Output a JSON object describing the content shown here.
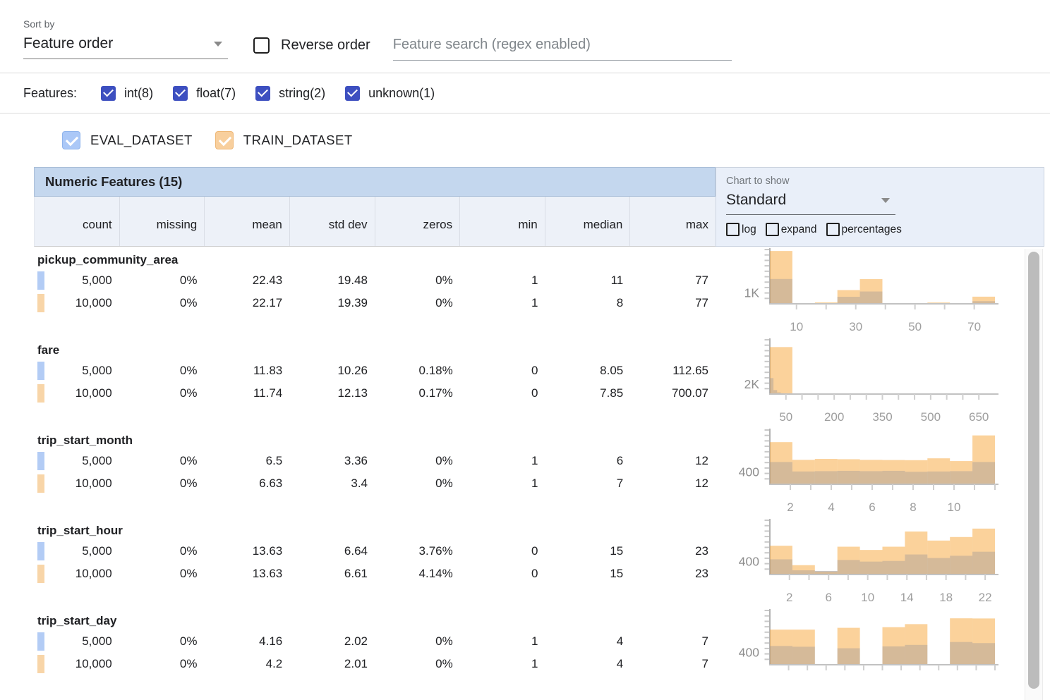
{
  "toolbar": {
    "sort_by_label": "Sort by",
    "sort_by_value": "Feature order",
    "reverse_order_label": "Reverse order",
    "search_placeholder": "Feature search (regex enabled)"
  },
  "features_filter": {
    "label": "Features:",
    "types": [
      {
        "label": "int(8)",
        "checked": true
      },
      {
        "label": "float(7)",
        "checked": true
      },
      {
        "label": "string(2)",
        "checked": true
      },
      {
        "label": "unknown(1)",
        "checked": true
      }
    ]
  },
  "datasets": [
    {
      "name": "EVAL_DATASET",
      "key": "eval",
      "chip_color": "#b3ccf5",
      "checkbox_bg": "#abc8f7",
      "checkbox_border": "#8fb4ec",
      "bar_color": "rgba(66,133,244,0.4)"
    },
    {
      "name": "TRAIN_DATASET",
      "key": "train",
      "chip_color": "#f8d5a8",
      "checkbox_bg": "#f8cf9d",
      "checkbox_border": "#eeb877",
      "bar_color": "rgba(247,166,56,0.5)"
    }
  ],
  "table": {
    "title": "Numeric Features (15)",
    "columns": [
      "count",
      "missing",
      "mean",
      "std dev",
      "zeros",
      "min",
      "median",
      "max"
    ]
  },
  "chart_controls": {
    "label": "Chart to show",
    "value": "Standard",
    "options": [
      {
        "label": "log",
        "checked": false
      },
      {
        "label": "expand",
        "checked": false
      },
      {
        "label": "percentages",
        "checked": false
      }
    ]
  },
  "features": [
    {
      "name": "pickup_community_area",
      "rows": [
        {
          "dataset": "eval",
          "values": [
            "5,000",
            "0%",
            "22.43",
            "19.48",
            "0%",
            "1",
            "11",
            "77"
          ]
        },
        {
          "dataset": "train",
          "values": [
            "10,000",
            "0%",
            "22.17",
            "19.39",
            "0%",
            "1",
            "8",
            "77"
          ]
        }
      ]
    },
    {
      "name": "fare",
      "rows": [
        {
          "dataset": "eval",
          "values": [
            "5,000",
            "0%",
            "11.83",
            "10.26",
            "0.18%",
            "0",
            "8.05",
            "112.65"
          ]
        },
        {
          "dataset": "train",
          "values": [
            "10,000",
            "0%",
            "11.74",
            "12.13",
            "0.17%",
            "0",
            "7.85",
            "700.07"
          ]
        }
      ]
    },
    {
      "name": "trip_start_month",
      "rows": [
        {
          "dataset": "eval",
          "values": [
            "5,000",
            "0%",
            "6.5",
            "3.36",
            "0%",
            "1",
            "6",
            "12"
          ]
        },
        {
          "dataset": "train",
          "values": [
            "10,000",
            "0%",
            "6.63",
            "3.4",
            "0%",
            "1",
            "7",
            "12"
          ]
        }
      ]
    },
    {
      "name": "trip_start_hour",
      "rows": [
        {
          "dataset": "eval",
          "values": [
            "5,000",
            "0%",
            "13.63",
            "6.64",
            "3.76%",
            "0",
            "15",
            "23"
          ]
        },
        {
          "dataset": "train",
          "values": [
            "10,000",
            "0%",
            "13.63",
            "6.61",
            "4.14%",
            "0",
            "15",
            "23"
          ]
        }
      ]
    },
    {
      "name": "trip_start_day",
      "rows": [
        {
          "dataset": "eval",
          "values": [
            "5,000",
            "0%",
            "4.16",
            "2.02",
            "0%",
            "1",
            "4",
            "7"
          ]
        },
        {
          "dataset": "train",
          "values": [
            "10,000",
            "0%",
            "4.2",
            "2.01",
            "0%",
            "1",
            "4",
            "7"
          ]
        }
      ]
    }
  ],
  "chart_data": [
    {
      "type": "bar",
      "feature": "pickup_community_area",
      "ylabel": "1K",
      "ylabel_value": 1000,
      "ymax": 5000,
      "x_domain": [
        1,
        77
      ],
      "xticks": [
        {
          "f": 0.1184,
          "l": "10"
        },
        {
          "f": 0.25,
          "l": ""
        },
        {
          "f": 0.3816,
          "l": "30"
        },
        {
          "f": 0.5132,
          "l": ""
        },
        {
          "f": 0.6447,
          "l": "50"
        },
        {
          "f": 0.7763,
          "l": ""
        },
        {
          "f": 0.9079,
          "l": "70"
        }
      ],
      "series": [
        {
          "name": "EVAL_DATASET",
          "color": "rgba(66,133,244,0.4)",
          "domain": [
            1,
            77
          ],
          "values": [
            2260,
            25,
            45,
            640,
            1120,
            8,
            8,
            40,
            5,
            240
          ]
        },
        {
          "name": "TRAIN_DATASET",
          "color": "rgba(247,166,56,0.5)",
          "domain": [
            1,
            77
          ],
          "values": [
            4800,
            60,
            130,
            1250,
            2250,
            15,
            15,
            120,
            10,
            650
          ]
        }
      ]
    },
    {
      "type": "bar",
      "feature": "fare",
      "ylabel": "2K",
      "ylabel_value": 2000,
      "ymax": 11000,
      "x_domain": [
        0,
        700.07
      ],
      "xticks": [
        {
          "f": 0.0714,
          "l": "50"
        },
        {
          "f": 0.1428,
          "l": ""
        },
        {
          "f": 0.2143,
          "l": ""
        },
        {
          "f": 0.2857,
          "l": "200"
        },
        {
          "f": 0.3571,
          "l": ""
        },
        {
          "f": 0.4286,
          "l": ""
        },
        {
          "f": 0.5,
          "l": "350"
        },
        {
          "f": 0.5714,
          "l": ""
        },
        {
          "f": 0.6428,
          "l": ""
        },
        {
          "f": 0.7143,
          "l": "500"
        },
        {
          "f": 0.7857,
          "l": ""
        },
        {
          "f": 0.8571,
          "l": ""
        },
        {
          "f": 0.9285,
          "l": "650"
        }
      ],
      "series": [
        {
          "name": "EVAL_DATASET",
          "color": "rgba(66,133,244,0.4)",
          "domain": [
            0,
            112.65
          ],
          "values": [
            3200,
            800,
            330,
            150,
            80,
            40,
            20,
            10,
            5,
            3
          ]
        },
        {
          "name": "TRAIN_DATASET",
          "color": "rgba(247,166,56,0.5)",
          "domain": [
            0,
            700.07
          ],
          "values": [
            9400,
            40,
            15,
            8,
            5,
            3,
            2,
            1,
            1,
            1
          ]
        }
      ]
    },
    {
      "type": "bar",
      "feature": "trip_start_month",
      "ylabel": "400",
      "ylabel_value": 400,
      "ymax": 1800,
      "x_domain": [
        1,
        12
      ],
      "xticks": [
        {
          "f": 0.0909,
          "l": "2"
        },
        {
          "f": 0.1818,
          "l": ""
        },
        {
          "f": 0.2727,
          "l": "4"
        },
        {
          "f": 0.3636,
          "l": ""
        },
        {
          "f": 0.4545,
          "l": "6"
        },
        {
          "f": 0.5455,
          "l": ""
        },
        {
          "f": 0.6364,
          "l": "8"
        },
        {
          "f": 0.7273,
          "l": ""
        },
        {
          "f": 0.8182,
          "l": "10"
        },
        {
          "f": 0.9091,
          "l": ""
        },
        {
          "f": 1.0,
          "l": ""
        }
      ],
      "series": [
        {
          "name": "EVAL_DATASET",
          "color": "rgba(66,133,244,0.4)",
          "domain": [
            1,
            12
          ],
          "values": [
            730,
            420,
            430,
            440,
            430,
            440,
            410,
            420,
            430,
            730
          ]
        },
        {
          "name": "TRAIN_DATASET",
          "color": "rgba(247,166,56,0.5)",
          "domain": [
            1,
            12
          ],
          "values": [
            1380,
            800,
            830,
            820,
            800,
            795,
            790,
            850,
            760,
            1600
          ]
        }
      ]
    },
    {
      "type": "bar",
      "feature": "trip_start_hour",
      "ylabel": "400",
      "ylabel_value": 400,
      "ymax": 1700,
      "x_domain": [
        0,
        23
      ],
      "xticks": [
        {
          "f": 0.087,
          "l": "2"
        },
        {
          "f": 0.1739,
          "l": ""
        },
        {
          "f": 0.2609,
          "l": "6"
        },
        {
          "f": 0.3478,
          "l": ""
        },
        {
          "f": 0.4348,
          "l": "10"
        },
        {
          "f": 0.5217,
          "l": ""
        },
        {
          "f": 0.6087,
          "l": "14"
        },
        {
          "f": 0.6957,
          "l": ""
        },
        {
          "f": 0.7826,
          "l": "18"
        },
        {
          "f": 0.8696,
          "l": ""
        },
        {
          "f": 0.9565,
          "l": "22"
        }
      ],
      "series": [
        {
          "name": "EVAL_DATASET",
          "color": "rgba(66,133,244,0.4)",
          "domain": [
            0,
            23
          ],
          "values": [
            470,
            130,
            110,
            450,
            400,
            420,
            620,
            510,
            580,
            705
          ]
        },
        {
          "name": "TRAIN_DATASET",
          "color": "rgba(247,166,56,0.5)",
          "domain": [
            0,
            23
          ],
          "values": [
            890,
            290,
            100,
            860,
            760,
            860,
            1330,
            1050,
            1160,
            1420
          ]
        }
      ]
    },
    {
      "type": "bar",
      "feature": "trip_start_day",
      "ylabel": "400",
      "ylabel_value": 400,
      "ymax": 1800,
      "x_domain": [
        1,
        7
      ],
      "xticks": [
        {
          "f": 0.0833,
          "l": ""
        },
        {
          "f": 0.1667,
          "l": ""
        },
        {
          "f": 0.25,
          "l": ""
        },
        {
          "f": 0.3333,
          "l": ""
        },
        {
          "f": 0.4167,
          "l": ""
        },
        {
          "f": 0.5,
          "l": ""
        },
        {
          "f": 0.5833,
          "l": ""
        },
        {
          "f": 0.6667,
          "l": ""
        },
        {
          "f": 0.75,
          "l": ""
        },
        {
          "f": 0.8333,
          "l": ""
        },
        {
          "f": 0.9167,
          "l": ""
        },
        {
          "f": 1.0,
          "l": ""
        }
      ],
      "series": [
        {
          "name": "EVAL_DATASET",
          "color": "rgba(66,133,244,0.4)",
          "domain": [
            1,
            7
          ],
          "values": [
            615,
            590,
            0,
            540,
            0,
            600,
            650,
            0,
            745,
            710
          ]
        },
        {
          "name": "TRAIN_DATASET",
          "color": "rgba(247,166,56,0.5)",
          "domain": [
            1,
            7
          ],
          "values": [
            1150,
            1150,
            0,
            1210,
            0,
            1230,
            1330,
            0,
            1520,
            1515
          ]
        }
      ]
    }
  ]
}
